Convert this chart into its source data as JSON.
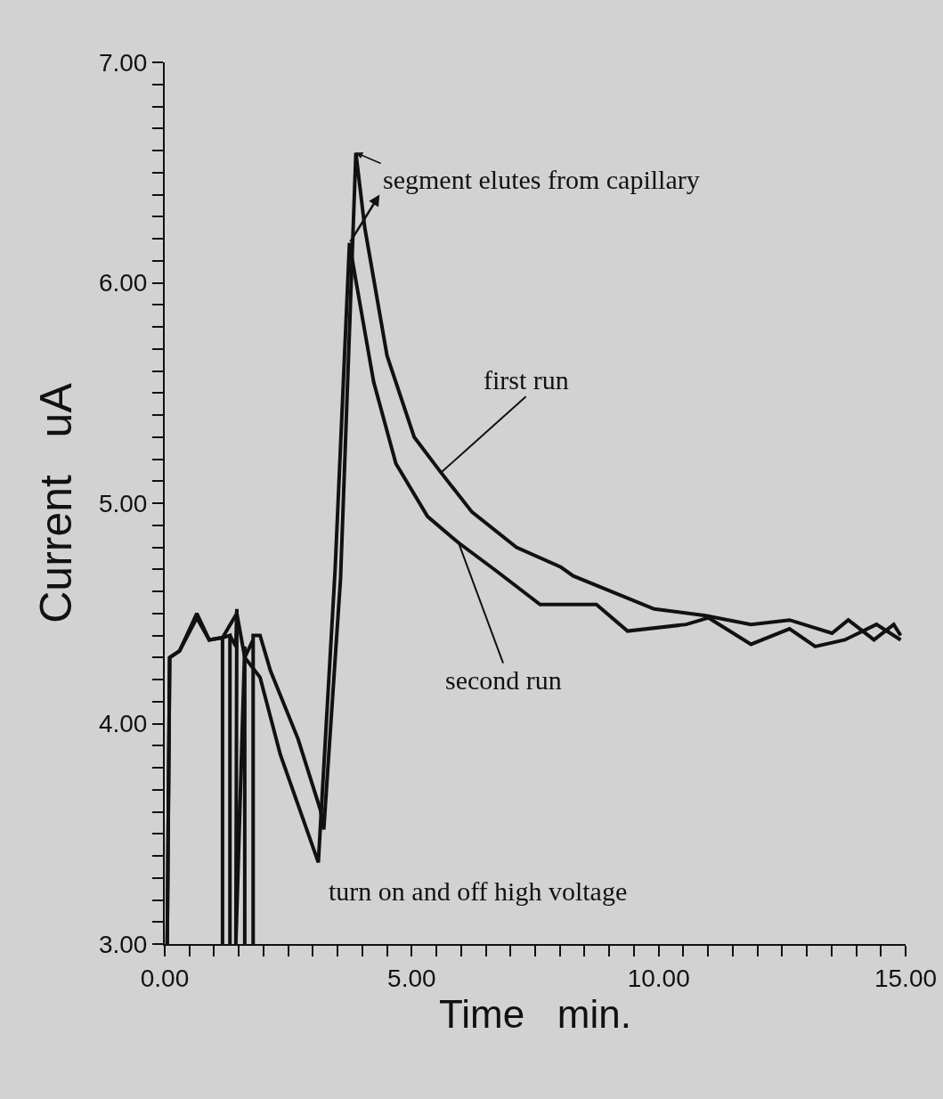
{
  "chart_data": {
    "type": "line",
    "xlabel": "Time   min.",
    "ylabel": "Current   uA",
    "xlim": [
      0,
      15
    ],
    "ylim": [
      3,
      7
    ],
    "xticks": [
      {
        "value": 0,
        "label": "0.00"
      },
      {
        "value": 0.5,
        "label": null
      },
      {
        "value": 1,
        "label": null
      },
      {
        "value": 1.5,
        "label": null
      },
      {
        "value": 2,
        "label": null
      },
      {
        "value": 2.5,
        "label": null
      },
      {
        "value": 3,
        "label": null
      },
      {
        "value": 3.5,
        "label": null
      },
      {
        "value": 4,
        "label": null
      },
      {
        "value": 4.5,
        "label": null
      },
      {
        "value": 5,
        "label": "5.00"
      },
      {
        "value": 5.5,
        "label": null
      },
      {
        "value": 6,
        "label": null
      },
      {
        "value": 6.5,
        "label": null
      },
      {
        "value": 7,
        "label": null
      },
      {
        "value": 7.5,
        "label": null
      },
      {
        "value": 8,
        "label": null
      },
      {
        "value": 8.5,
        "label": null
      },
      {
        "value": 9,
        "label": null
      },
      {
        "value": 9.5,
        "label": null
      },
      {
        "value": 10,
        "label": "10.00"
      },
      {
        "value": 10.5,
        "label": null
      },
      {
        "value": 11,
        "label": null
      },
      {
        "value": 11.5,
        "label": null
      },
      {
        "value": 12,
        "label": null
      },
      {
        "value": 12.5,
        "label": null
      },
      {
        "value": 13,
        "label": null
      },
      {
        "value": 13.5,
        "label": null
      },
      {
        "value": 14,
        "label": null
      },
      {
        "value": 14.5,
        "label": null
      },
      {
        "value": 15,
        "label": "15.00"
      }
    ],
    "yticks": [
      {
        "value": 3,
        "label": "3.00"
      },
      {
        "value": 3.1,
        "label": null
      },
      {
        "value": 3.2,
        "label": null
      },
      {
        "value": 3.3,
        "label": null
      },
      {
        "value": 3.4,
        "label": null
      },
      {
        "value": 3.5,
        "label": null
      },
      {
        "value": 3.6,
        "label": null
      },
      {
        "value": 3.7,
        "label": null
      },
      {
        "value": 3.8,
        "label": null
      },
      {
        "value": 3.9,
        "label": null
      },
      {
        "value": 4,
        "label": "4.00"
      },
      {
        "value": 4.1,
        "label": null
      },
      {
        "value": 4.2,
        "label": null
      },
      {
        "value": 4.3,
        "label": null
      },
      {
        "value": 4.4,
        "label": null
      },
      {
        "value": 4.5,
        "label": null
      },
      {
        "value": 4.6,
        "label": null
      },
      {
        "value": 4.7,
        "label": null
      },
      {
        "value": 4.8,
        "label": null
      },
      {
        "value": 4.9,
        "label": null
      },
      {
        "value": 5,
        "label": "5.00"
      },
      {
        "value": 5.1,
        "label": null
      },
      {
        "value": 5.2,
        "label": null
      },
      {
        "value": 5.3,
        "label": null
      },
      {
        "value": 5.4,
        "label": null
      },
      {
        "value": 5.5,
        "label": null
      },
      {
        "value": 5.6,
        "label": null
      },
      {
        "value": 5.7,
        "label": null
      },
      {
        "value": 5.8,
        "label": null
      },
      {
        "value": 5.9,
        "label": null
      },
      {
        "value": 6,
        "label": "6.00"
      },
      {
        "value": 6.1,
        "label": null
      },
      {
        "value": 6.2,
        "label": null
      },
      {
        "value": 6.3,
        "label": null
      },
      {
        "value": 6.4,
        "label": null
      },
      {
        "value": 6.5,
        "label": null
      },
      {
        "value": 6.6,
        "label": null
      },
      {
        "value": 6.7,
        "label": null
      },
      {
        "value": 6.8,
        "label": null
      },
      {
        "value": 6.9,
        "label": null
      },
      {
        "value": 7,
        "label": "7.00"
      }
    ],
    "grid": false,
    "legend": false,
    "marker": "none",
    "line_style": "solid",
    "series": [
      {
        "name": "first run",
        "color": "#111111",
        "x": [
          0.05,
          0.1,
          0.3,
          0.65,
          0.9,
          1.17,
          1.17,
          1.17,
          1.32,
          1.32,
          1.32,
          1.44,
          1.46,
          1.44,
          1.62,
          1.62,
          1.62,
          1.79,
          1.79,
          1.79,
          1.93,
          2.14,
          2.7,
          3.15,
          3.22,
          3.56,
          3.87,
          4.05,
          4.5,
          5.05,
          5.59,
          6.22,
          7.12,
          8.02,
          8.27,
          9.91,
          10.95,
          11.87,
          12.65,
          13.51,
          13.84,
          14.36,
          14.76,
          14.9
        ],
        "values": [
          3.0,
          4.3,
          4.33,
          4.5,
          4.38,
          4.39,
          3.0,
          4.39,
          4.4,
          3.0,
          4.4,
          4.35,
          4.52,
          3.0,
          4.35,
          3.0,
          4.3,
          4.38,
          3.0,
          4.4,
          4.4,
          4.24,
          3.93,
          3.61,
          3.52,
          4.66,
          6.59,
          6.25,
          5.67,
          5.3,
          5.14,
          4.96,
          4.8,
          4.71,
          4.67,
          4.52,
          4.49,
          4.45,
          4.47,
          4.41,
          4.47,
          4.38,
          4.45,
          4.4
        ]
      },
      {
        "name": "second run",
        "color": "#111111",
        "x": [
          0.05,
          0.1,
          0.3,
          0.65,
          0.9,
          1.17,
          1.46,
          1.62,
          1.93,
          2.34,
          3.11,
          3.45,
          3.74,
          3.87,
          4.23,
          4.68,
          5.32,
          5.95,
          6.67,
          7.6,
          8.74,
          9.37,
          10.56,
          11.01,
          11.87,
          12.65,
          13.17,
          13.77,
          14.41,
          14.9
        ],
        "values": [
          3.0,
          4.3,
          4.33,
          4.48,
          4.38,
          4.39,
          4.5,
          4.3,
          4.21,
          3.86,
          3.37,
          4.7,
          6.18,
          6.01,
          5.55,
          5.18,
          4.94,
          4.82,
          4.7,
          4.54,
          4.54,
          4.42,
          4.45,
          4.48,
          4.36,
          4.43,
          4.35,
          4.38,
          4.45,
          4.38
        ]
      }
    ],
    "annotations": [
      {
        "text": "segment elutes from capillary",
        "x": 3.87,
        "y": 6.59
      },
      "turn on and off high voltage"
    ]
  }
}
